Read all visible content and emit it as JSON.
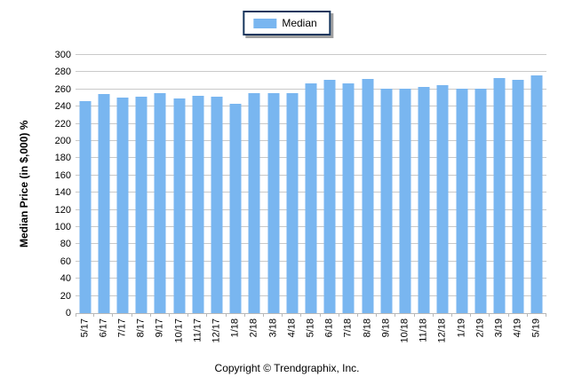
{
  "legend": {
    "label": "Median",
    "swatch_color": "#79B6F0",
    "border_color": "#17375E"
  },
  "footer": {
    "copyright": "Copyright © Trendgraphix, Inc."
  },
  "colors": {
    "bar": "#79B6F0",
    "gridline": "#c9c9c9",
    "axis": "#b9b9b9"
  },
  "chart_data": {
    "type": "bar",
    "title": "",
    "xlabel": "",
    "ylabel": "Median Price (in $,000) %",
    "ylim": [
      0,
      300
    ],
    "ytick_step": 20,
    "yticks": [
      300,
      280,
      260,
      240,
      220,
      200,
      180,
      160,
      140,
      120,
      100,
      80,
      60,
      40,
      20,
      0
    ],
    "grid": "horizontal",
    "legend_position": "top-center",
    "categories": [
      "5/17",
      "6/17",
      "7/17",
      "8/17",
      "9/17",
      "10/17",
      "11/17",
      "12/17",
      "1/18",
      "2/18",
      "3/18",
      "4/18",
      "5/18",
      "6/18",
      "7/18",
      "8/18",
      "9/18",
      "10/18",
      "11/18",
      "12/18",
      "1/19",
      "2/19",
      "3/19",
      "4/19",
      "5/19"
    ],
    "series": [
      {
        "name": "Median",
        "color": "#79B6F0",
        "values": [
          246,
          255,
          251,
          252,
          256,
          249,
          253,
          252,
          243,
          256,
          256,
          256,
          267,
          271,
          267,
          272,
          261,
          261,
          263,
          265,
          261,
          261,
          273,
          271,
          276
        ]
      }
    ]
  }
}
